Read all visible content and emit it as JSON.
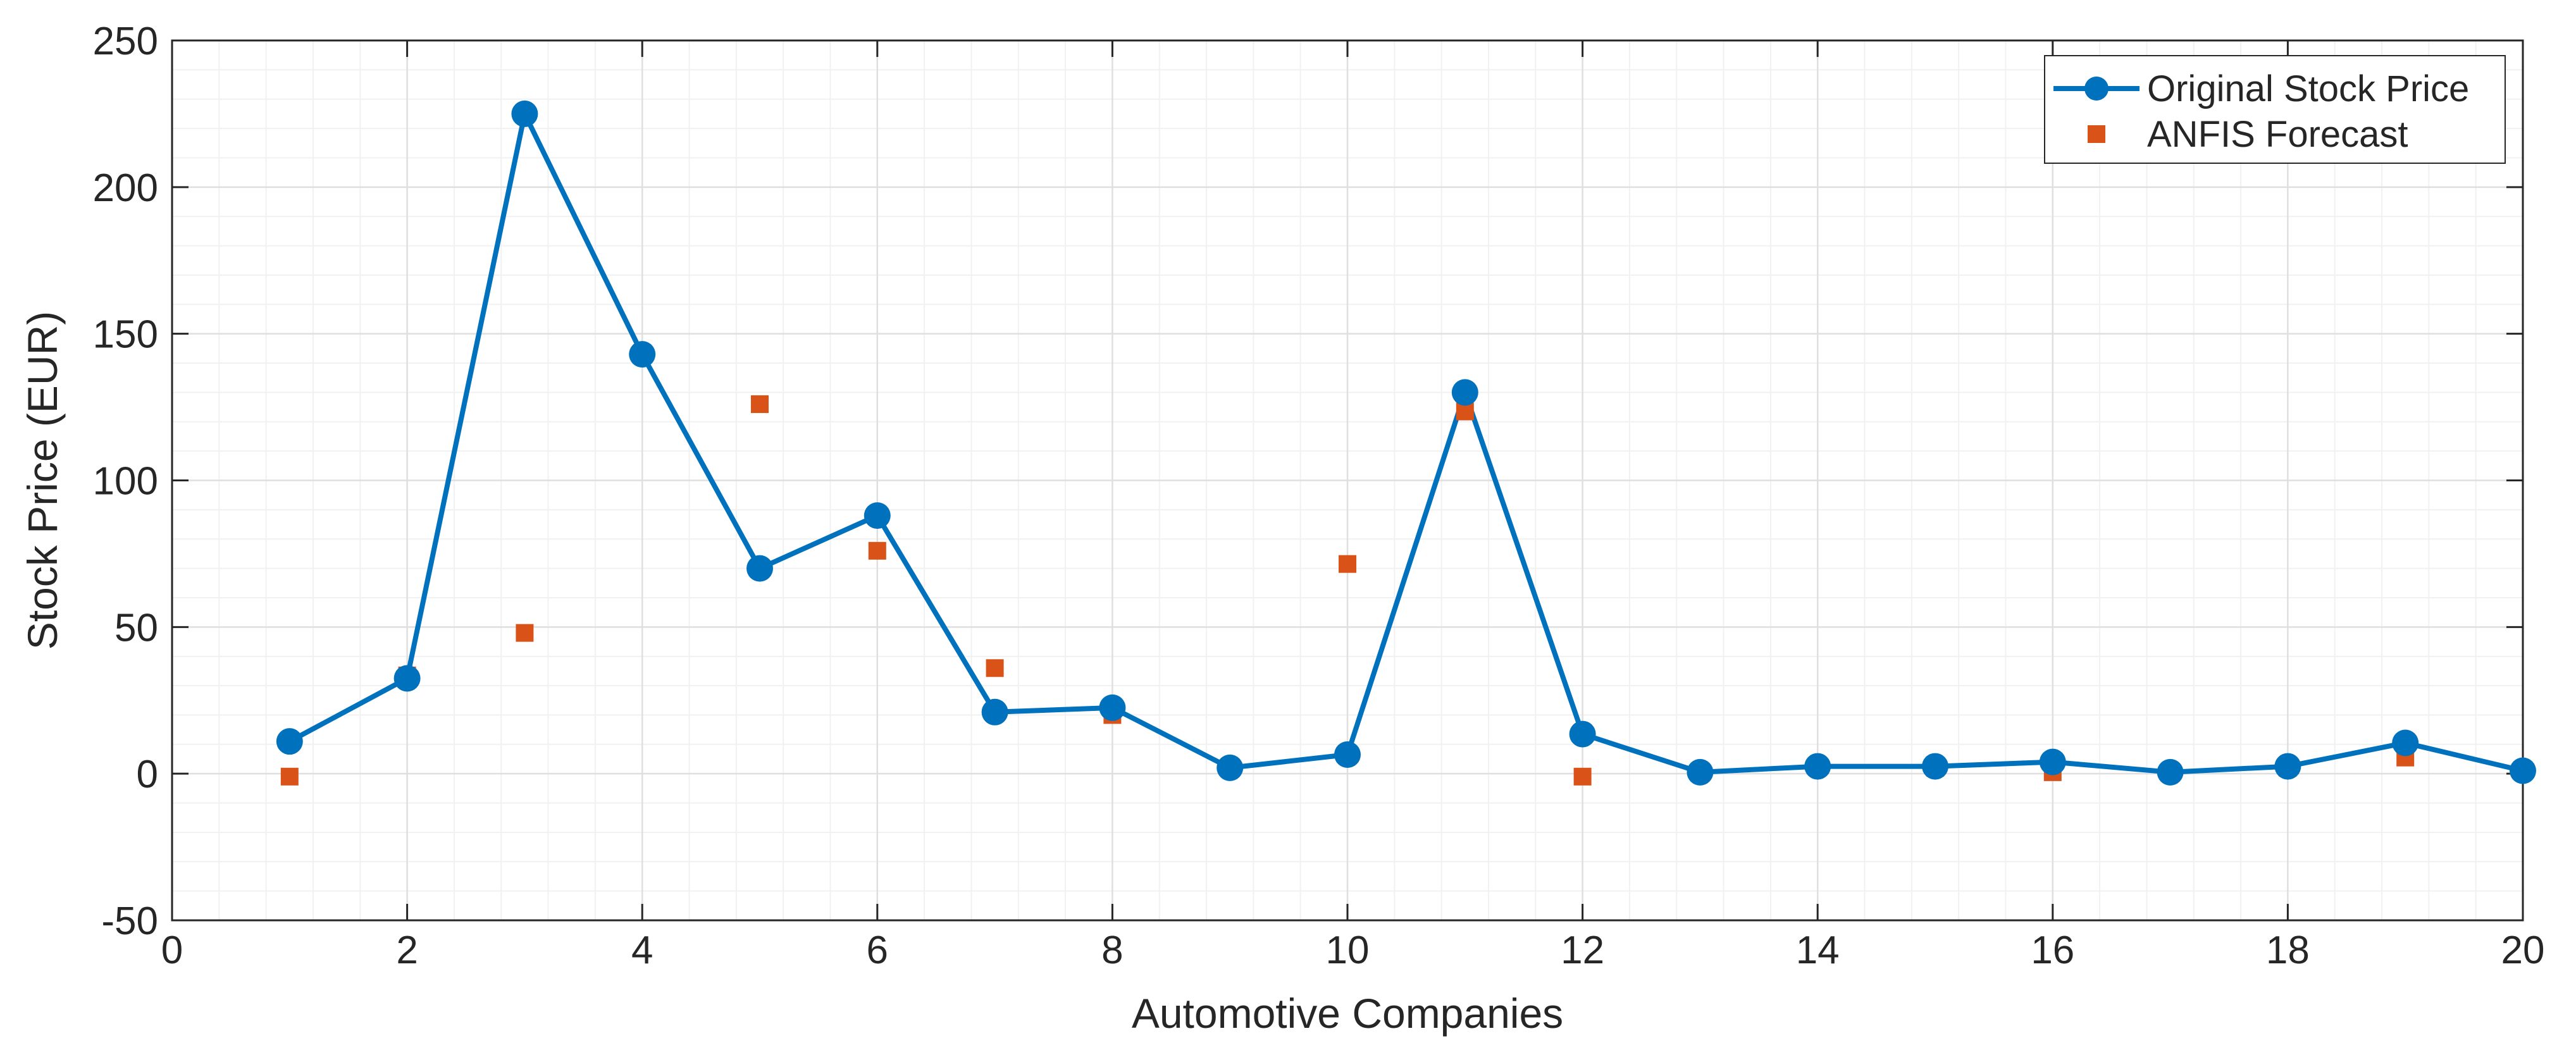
{
  "chart_data": {
    "type": "line",
    "title": "",
    "xlabel": "Automotive Companies",
    "ylabel": "Stock Price (EUR)",
    "xlim": [
      0,
      20
    ],
    "ylim": [
      -50,
      250
    ],
    "xticks": [
      0,
      2,
      4,
      6,
      8,
      10,
      12,
      14,
      16,
      18,
      20
    ],
    "yticks": [
      -50,
      0,
      50,
      100,
      150,
      200,
      250
    ],
    "grid": true,
    "minor_grid": true,
    "legend_position": "top-right",
    "series": [
      {
        "name": "Original Stock Price",
        "style": "line-with-circle-markers",
        "color": "#0072BD",
        "x": [
          1,
          2,
          3,
          4,
          5,
          6,
          7,
          8,
          9,
          10,
          11,
          12,
          13,
          14,
          15,
          16,
          17,
          18,
          19,
          20
        ],
        "y": [
          11,
          32.5,
          225,
          143,
          70,
          88,
          21,
          22.5,
          2,
          6.5,
          130,
          13.5,
          0.5,
          2.5,
          2.5,
          4,
          0.5,
          2.5,
          10.5,
          1
        ]
      },
      {
        "name": "ANFIS Forecast",
        "style": "square-markers",
        "color": "#D95319",
        "x": [
          1,
          2,
          3,
          4,
          5,
          6,
          7,
          8,
          9,
          10,
          11,
          12,
          13,
          14,
          15,
          16,
          17,
          18,
          19,
          20
        ],
        "y": [
          -1,
          33.5,
          48,
          143.5,
          126,
          76,
          36,
          20,
          2,
          71.5,
          123.5,
          -1,
          0.5,
          2.5,
          2,
          0.5,
          0.5,
          2,
          5.5,
          1
        ]
      }
    ]
  }
}
